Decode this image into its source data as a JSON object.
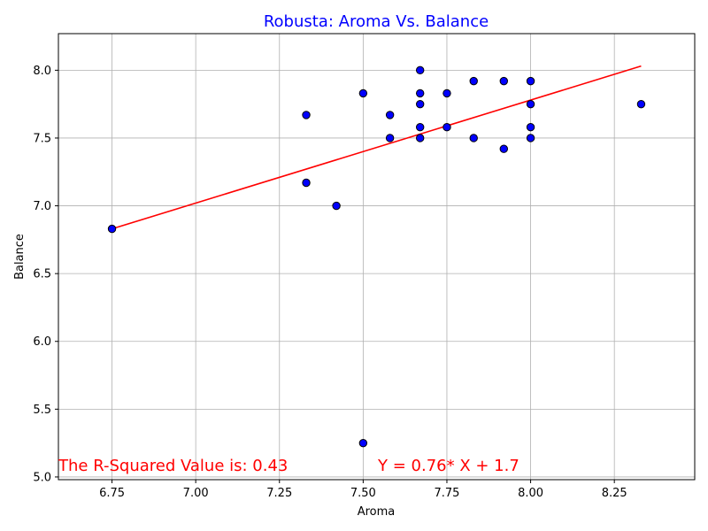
{
  "chart_data": {
    "type": "scatter",
    "title": "Robusta: Aroma Vs. Balance",
    "xlabel": "Aroma",
    "ylabel": "Balance",
    "xlim": [
      6.59,
      8.49
    ],
    "ylim": [
      4.98,
      8.27
    ],
    "xticks": [
      6.75,
      7.0,
      7.25,
      7.5,
      7.75,
      8.0,
      8.25
    ],
    "xtick_labels": [
      "6.75",
      "7.00",
      "7.25",
      "7.50",
      "7.75",
      "8.00",
      "8.25"
    ],
    "yticks": [
      5.0,
      5.5,
      6.0,
      6.5,
      7.0,
      7.5,
      8.0
    ],
    "ytick_labels": [
      "5.0",
      "5.5",
      "6.0",
      "6.5",
      "7.0",
      "7.5",
      "8.0"
    ],
    "grid": true,
    "colors": {
      "points": "#0000ff",
      "point_edge": "#000000",
      "regression": "#ff0000",
      "title": "#0000ff",
      "annotation": "#ff0000",
      "grid": "#b0b0b0"
    },
    "points": [
      {
        "x": 6.75,
        "y": 6.83
      },
      {
        "x": 7.33,
        "y": 7.67
      },
      {
        "x": 7.33,
        "y": 7.17
      },
      {
        "x": 7.42,
        "y": 7.0
      },
      {
        "x": 7.5,
        "y": 7.83
      },
      {
        "x": 7.5,
        "y": 5.25
      },
      {
        "x": 7.58,
        "y": 7.67
      },
      {
        "x": 7.58,
        "y": 7.5
      },
      {
        "x": 7.67,
        "y": 8.0
      },
      {
        "x": 7.67,
        "y": 7.83
      },
      {
        "x": 7.67,
        "y": 7.75
      },
      {
        "x": 7.67,
        "y": 7.58
      },
      {
        "x": 7.67,
        "y": 7.5
      },
      {
        "x": 7.75,
        "y": 7.83
      },
      {
        "x": 7.75,
        "y": 7.58
      },
      {
        "x": 7.83,
        "y": 7.92
      },
      {
        "x": 7.83,
        "y": 7.5
      },
      {
        "x": 7.92,
        "y": 7.92
      },
      {
        "x": 7.92,
        "y": 7.42
      },
      {
        "x": 8.0,
        "y": 7.92
      },
      {
        "x": 8.0,
        "y": 7.75
      },
      {
        "x": 8.0,
        "y": 7.58
      },
      {
        "x": 8.0,
        "y": 7.5
      },
      {
        "x": 8.33,
        "y": 7.75
      }
    ],
    "regression": {
      "slope": 0.76,
      "intercept": 1.7,
      "x_range": [
        6.75,
        8.33
      ]
    },
    "annotations": {
      "r_squared": "The R-Squared Value is: 0.43",
      "equation": "Y = 0.76* X + 1.7"
    }
  }
}
